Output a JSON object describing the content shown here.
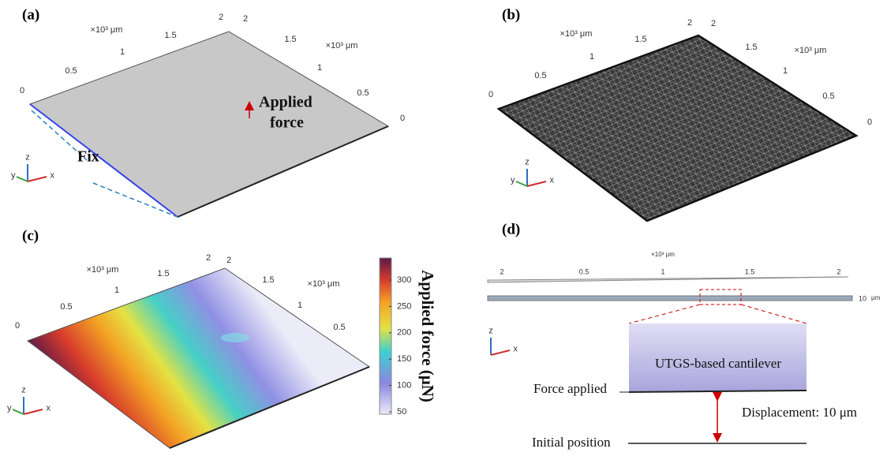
{
  "panels": [
    {
      "label": "(a)",
      "top_axis": {
        "unit": "×10³ μm",
        "ticks": [
          "0",
          "0.5",
          "1",
          "1.5",
          "2"
        ]
      },
      "right_axis": {
        "unit": "×10³ μm",
        "ticks": [
          "2",
          "1.5",
          "1",
          "0.5",
          "0"
        ]
      },
      "annotations": {
        "fix": "Fix",
        "force_1": "Applied",
        "force_2": "force"
      },
      "triad": [
        "z",
        "y",
        "x"
      ]
    },
    {
      "label": "(b)",
      "top_axis": {
        "unit": "×10³ μm",
        "ticks": [
          "0",
          "0.5",
          "1",
          "1.5",
          "2"
        ]
      },
      "right_axis": {
        "unit": "×10³ μm",
        "ticks": [
          "2",
          "1.5",
          "1",
          "0.5",
          "0"
        ]
      },
      "triad": [
        "z",
        "y",
        "x"
      ]
    },
    {
      "label": "(c)",
      "top_axis": {
        "unit": "×10³ μm",
        "ticks": [
          "0",
          "0.5",
          "1",
          "1.5",
          "2"
        ]
      },
      "right_axis": {
        "unit": "×10³ μm",
        "ticks": [
          "2",
          "1.5",
          "1",
          "0.5"
        ]
      },
      "colorbar": {
        "title": "Applied force (μN)",
        "ticks": [
          "300",
          "250",
          "200",
          "150",
          "100",
          "50"
        ]
      },
      "triad": [
        "z",
        "y",
        "x"
      ]
    },
    {
      "label": "(d)",
      "top_axis": {
        "unit": "×10³ μm",
        "ticks": [
          "2",
          "0.5",
          "1",
          "1.5",
          "2"
        ]
      },
      "thickness": {
        "value": "10",
        "unit": "μm"
      },
      "annotations": {
        "beam": "UTGS-based cantilever",
        "force": "Force applied",
        "displacement": "Displacement: 10 μm",
        "initial": "Initial position"
      },
      "triad": [
        "z",
        "x"
      ]
    }
  ]
}
